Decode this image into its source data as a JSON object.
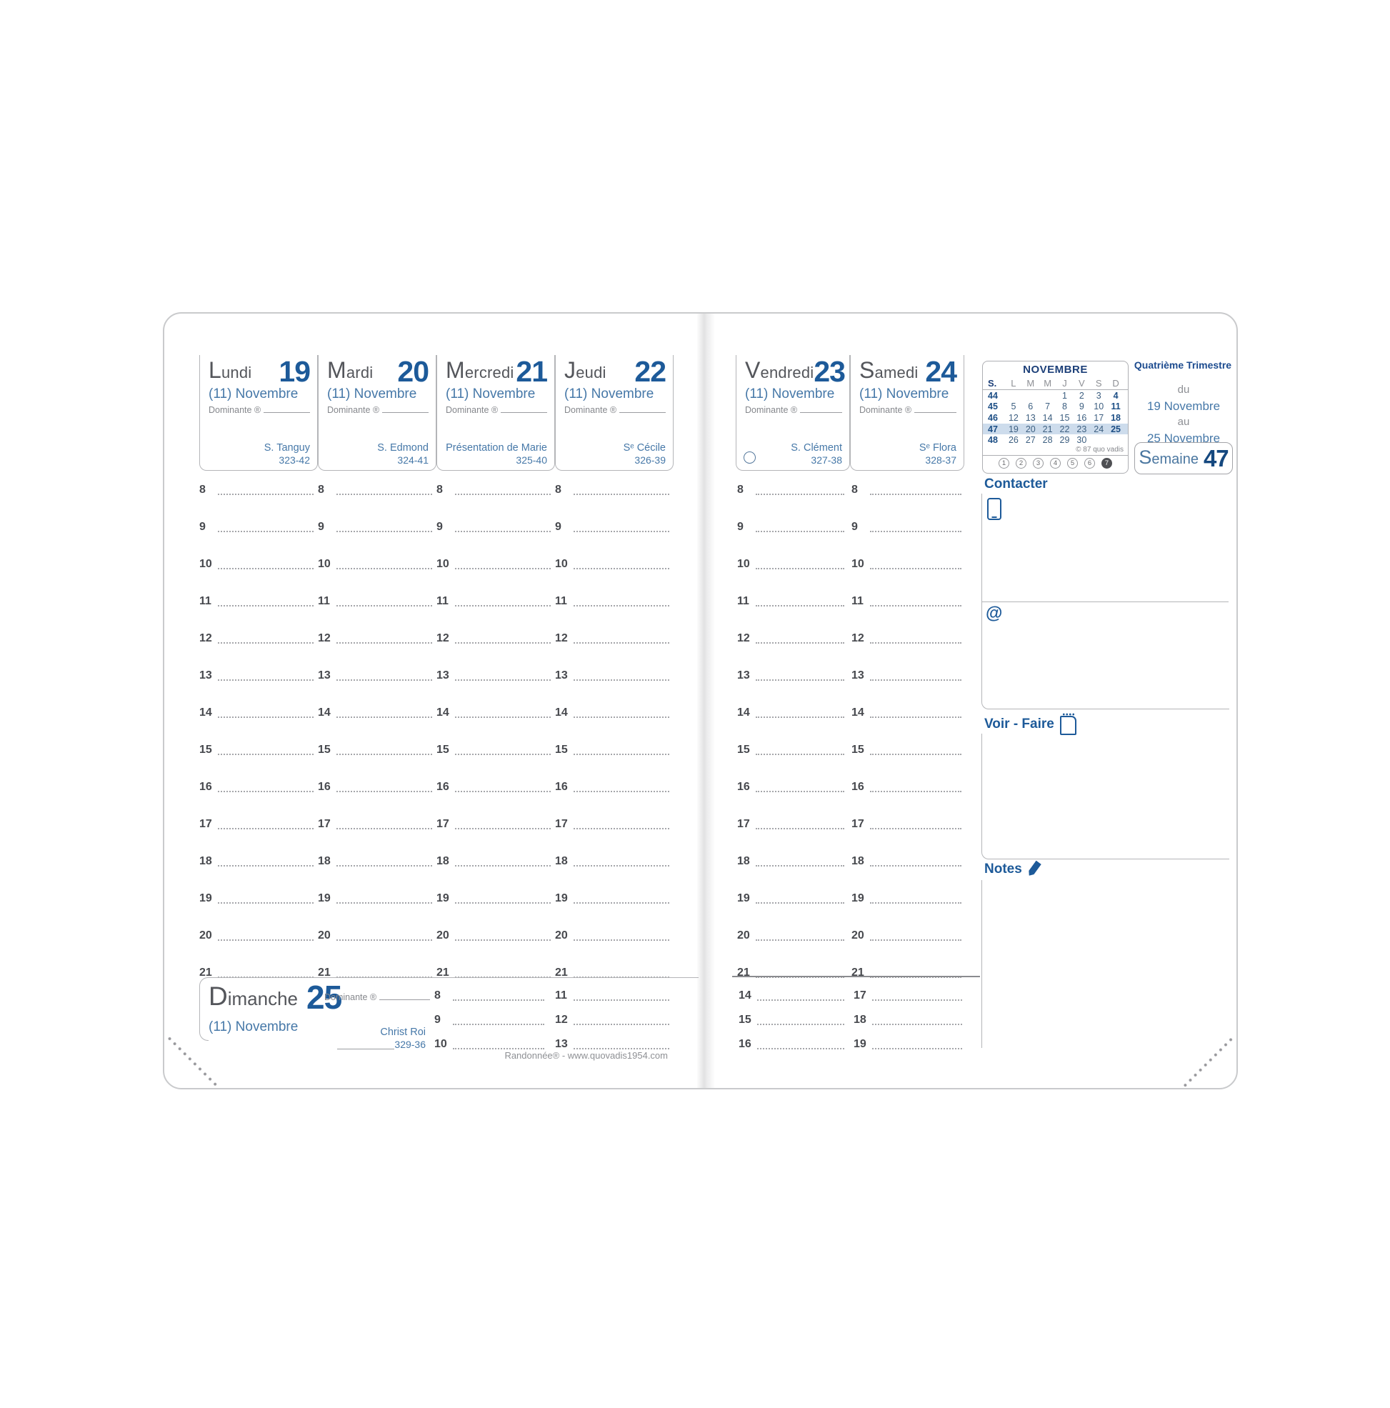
{
  "planner": {
    "footer": "Randonnée® - www.quovadis1954.com",
    "quarter_label": "Quatrième Trimestre",
    "range_du": "du",
    "range_from": "19 Novembre",
    "range_au": "au",
    "range_to": "25 Novembre",
    "week_label": "Semaine",
    "week_number": "47"
  },
  "days": [
    {
      "name": "Lundi",
      "number": "19",
      "month": "(11) Novembre",
      "dominante": "Dominante ®",
      "saint": "S. Tanguy",
      "code": "323-42"
    },
    {
      "name": "Mardi",
      "number": "20",
      "month": "(11) Novembre",
      "dominante": "Dominante ®",
      "saint": "S. Edmond",
      "code": "324-41"
    },
    {
      "name": "Mercredi",
      "number": "21",
      "month": "(11) Novembre",
      "dominante": "Dominante ®",
      "saint": "Présentation de Marie",
      "code": "325-40"
    },
    {
      "name": "Jeudi",
      "number": "22",
      "month": "(11) Novembre",
      "dominante": "Dominante ®",
      "saint": "Sᵉ Cécile",
      "code": "326-39"
    },
    {
      "name": "Vendredi",
      "number": "23",
      "month": "(11) Novembre",
      "dominante": "Dominante ®",
      "saint": "S. Clément",
      "code": "327-38",
      "moon_phase": "full-moon-circle"
    },
    {
      "name": "Samedi",
      "number": "24",
      "month": "(11) Novembre",
      "dominante": "Dominante ®",
      "saint": "Sᵉ Flora",
      "code": "328-37"
    }
  ],
  "sunday": {
    "name": "Dimanche",
    "number": "25",
    "month": "(11) Novembre",
    "dominante": "Dominante ®",
    "saint": "Christ Roi",
    "code": "329-36"
  },
  "hours": [
    "8",
    "9",
    "10",
    "11",
    "12",
    "13",
    "14",
    "15",
    "16",
    "17",
    "18",
    "19",
    "20",
    "21"
  ],
  "sunday_hours_1": [
    "8",
    "9",
    "10"
  ],
  "sunday_hours_2": [
    "11",
    "12",
    "13"
  ],
  "sunday_hours_3": [
    "14",
    "15",
    "16"
  ],
  "sunday_hours_4": [
    "17",
    "18",
    "19"
  ],
  "calendar": {
    "title": "NOVEMBRE",
    "headers": [
      "S.",
      "L",
      "M",
      "M",
      "J",
      "V",
      "S",
      "D"
    ],
    "weeks": [
      {
        "num": "44",
        "d1": "",
        "d2": "",
        "d3": "",
        "d4": "1",
        "d5": "2",
        "d6": "3",
        "d7": "4"
      },
      {
        "num": "45",
        "d1": "5",
        "d2": "6",
        "d3": "7",
        "d4": "8",
        "d5": "9",
        "d6": "10",
        "d7": "11"
      },
      {
        "num": "46",
        "d1": "12",
        "d2": "13",
        "d3": "14",
        "d4": "15",
        "d5": "16",
        "d6": "17",
        "d7": "18"
      },
      {
        "num": "47",
        "d1": "19",
        "d2": "20",
        "d3": "21",
        "d4": "22",
        "d5": "23",
        "d6": "24",
        "d7": "25",
        "highlight": true
      },
      {
        "num": "48",
        "d1": "26",
        "d2": "27",
        "d3": "28",
        "d4": "29",
        "d5": "30",
        "d6": "",
        "d7": ""
      }
    ],
    "copyright": "© 87 quo vadis",
    "dials": [
      {
        "n": "1"
      },
      {
        "n": "2"
      },
      {
        "n": "3"
      },
      {
        "n": "4"
      },
      {
        "n": "5"
      },
      {
        "n": "6"
      },
      {
        "n": "7",
        "filled": true
      }
    ]
  },
  "sections": {
    "contact": "Contacter",
    "at_symbol": "@",
    "todo": "Voir - Faire",
    "notes": "Notes"
  },
  "colors": {
    "accent_blue": "#1d5a99",
    "mid_blue": "#4678a8",
    "navy": "#1c3f78",
    "week_highlight": "#cddcec"
  }
}
